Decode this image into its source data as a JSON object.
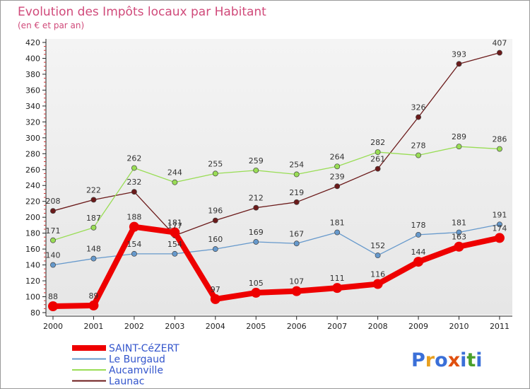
{
  "chart_data": {
    "type": "line",
    "title": "Evolution des Impôts locaux par Habitant",
    "subtitle": "(en € et par an)",
    "xlabel": "",
    "ylabel": "",
    "ylim": [
      80,
      420
    ],
    "yticks": [
      80,
      100,
      120,
      140,
      160,
      180,
      200,
      220,
      240,
      260,
      280,
      300,
      320,
      340,
      360,
      380,
      400,
      420
    ],
    "grid": false,
    "legend_position": "bottom-left",
    "categories": [
      "2000",
      "2001",
      "2002",
      "2003",
      "2004",
      "2005",
      "2006",
      "2007",
      "2008",
      "2009",
      "2010",
      "2011"
    ],
    "series": [
      {
        "name": "Launac",
        "color": "#6b1a1a",
        "values": [
          208,
          222,
          232,
          177,
          196,
          212,
          219,
          239,
          261,
          326,
          393,
          407
        ]
      },
      {
        "name": "Aucamville",
        "color": "#99dd55",
        "values": [
          171,
          187,
          262,
          244,
          255,
          259,
          254,
          264,
          282,
          278,
          289,
          286
        ]
      },
      {
        "name": "Le Burgaud",
        "color": "#6699cc",
        "values": [
          140,
          148,
          154,
          154,
          160,
          169,
          167,
          181,
          152,
          178,
          181,
          191
        ]
      },
      {
        "name": "SAINT-CéZERT",
        "color": "#ee0000",
        "values": [
          88,
          89,
          188,
          181,
          97,
          105,
          107,
          111,
          116,
          144,
          163,
          174
        ]
      }
    ],
    "legend_order": [
      "SAINT-CéZERT",
      "Le Burgaud",
      "Aucamville",
      "Launac"
    ]
  },
  "logo": {
    "text": "Proxiti",
    "letter_colors": [
      "#3a6fd8",
      "#e8a020",
      "#3a6fd8",
      "#e05010",
      "#3a6fd8",
      "#4aa02c",
      "#3a6fd8"
    ]
  }
}
